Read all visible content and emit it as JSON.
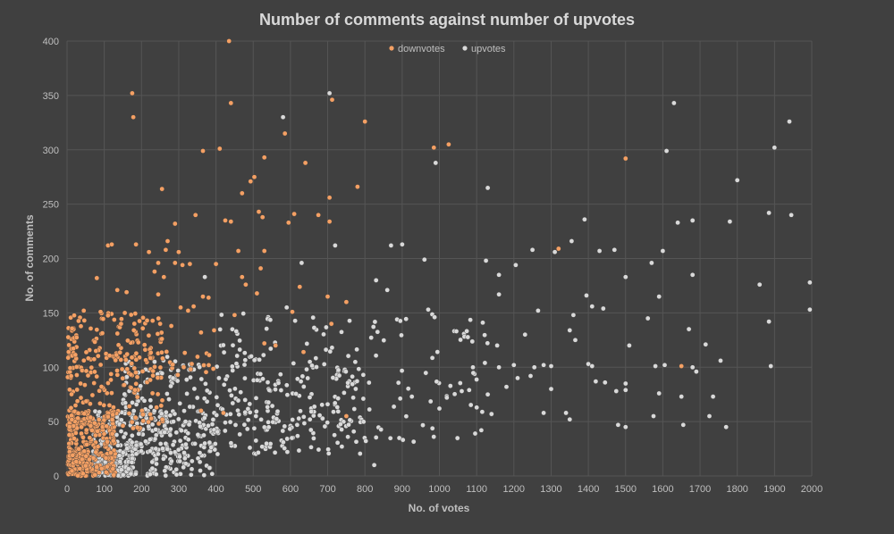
{
  "chart_data": {
    "type": "scatter",
    "title": "Number of comments against number of upvotes",
    "xlabel": "No. of votes",
    "ylabel": "No. of comments",
    "xlim": [
      0,
      2000
    ],
    "ylim": [
      0,
      400
    ],
    "xticks": [
      0,
      100,
      200,
      300,
      400,
      500,
      600,
      700,
      800,
      900,
      1000,
      1100,
      1200,
      1300,
      1400,
      1500,
      1600,
      1700,
      1800,
      1900,
      2000
    ],
    "yticks": [
      0,
      50,
      100,
      150,
      200,
      250,
      300,
      350,
      400
    ],
    "grid": true,
    "legend_position": "top-center",
    "series": [
      {
        "name": "downvotes",
        "color": "#f4a064",
        "points": [
          [
            435,
            400
          ],
          [
            175,
            352
          ],
          [
            440,
            343
          ],
          [
            712,
            346
          ],
          [
            178,
            330
          ],
          [
            800,
            326
          ],
          [
            585,
            315
          ],
          [
            410,
            301
          ],
          [
            365,
            299
          ],
          [
            985,
            302
          ],
          [
            1025,
            305
          ],
          [
            1500,
            292
          ],
          [
            530,
            293
          ],
          [
            640,
            288
          ],
          [
            493,
            271
          ],
          [
            503,
            275
          ],
          [
            780,
            266
          ],
          [
            255,
            264
          ],
          [
            470,
            260
          ],
          [
            705,
            256
          ],
          [
            345,
            240
          ],
          [
            425,
            235
          ],
          [
            440,
            234
          ],
          [
            515,
            243
          ],
          [
            525,
            238
          ],
          [
            595,
            233
          ],
          [
            610,
            241
          ],
          [
            675,
            240
          ],
          [
            705,
            234
          ],
          [
            290,
            232
          ],
          [
            185,
            213
          ],
          [
            110,
            212
          ],
          [
            120,
            213
          ],
          [
            270,
            216
          ],
          [
            265,
            208
          ],
          [
            300,
            206
          ],
          [
            460,
            207
          ],
          [
            530,
            207
          ],
          [
            1320,
            209
          ],
          [
            220,
            206
          ],
          [
            80,
            182
          ],
          [
            245,
            196
          ],
          [
            400,
            195
          ],
          [
            290,
            196
          ],
          [
            235,
            188
          ],
          [
            260,
            183
          ],
          [
            310,
            194
          ],
          [
            330,
            195
          ],
          [
            520,
            191
          ],
          [
            245,
            167
          ],
          [
            470,
            183
          ],
          [
            480,
            176
          ],
          [
            510,
            168
          ],
          [
            625,
            174
          ],
          [
            700,
            165
          ],
          [
            750,
            160
          ],
          [
            135,
            171
          ],
          [
            160,
            169
          ],
          [
            365,
            165
          ],
          [
            380,
            164
          ],
          [
            305,
            155
          ],
          [
            325,
            152
          ],
          [
            340,
            156
          ],
          [
            450,
            148
          ],
          [
            605,
            151
          ],
          [
            710,
            140
          ],
          [
            45,
            152
          ],
          [
            90,
            151
          ],
          [
            145,
            140
          ],
          [
            215,
            143
          ],
          [
            250,
            140
          ],
          [
            280,
            138
          ],
          [
            360,
            132
          ],
          [
            395,
            134
          ],
          [
            530,
            122
          ],
          [
            560,
            120
          ],
          [
            1650,
            101
          ],
          [
            750,
            55
          ],
          [
            360,
            60
          ],
          [
            420,
            58
          ],
          [
            635,
            114
          ]
        ],
        "dense_clusters": [
          {
            "x": [
              2,
              260
            ],
            "y": [
              40,
              150
            ],
            "n": 220
          },
          {
            "x": [
              5,
              130
            ],
            "y": [
              0,
              60
            ],
            "n": 230
          },
          {
            "x": [
              2,
              55
            ],
            "y": [
              0,
              25
            ],
            "n": 100
          },
          {
            "x": [
              130,
              400
            ],
            "y": [
              90,
              115
            ],
            "n": 50
          }
        ]
      },
      {
        "name": "upvotes",
        "color": "#d9d9d9",
        "points": [
          [
            705,
            352
          ],
          [
            1630,
            343
          ],
          [
            1940,
            326
          ],
          [
            580,
            330
          ],
          [
            1900,
            302
          ],
          [
            1610,
            299
          ],
          [
            990,
            288
          ],
          [
            1800,
            272
          ],
          [
            1130,
            265
          ],
          [
            1390,
            236
          ],
          [
            1640,
            233
          ],
          [
            1680,
            235
          ],
          [
            1780,
            234
          ],
          [
            1885,
            242
          ],
          [
            1945,
            240
          ],
          [
            720,
            212
          ],
          [
            870,
            212
          ],
          [
            900,
            213
          ],
          [
            1250,
            208
          ],
          [
            1355,
            216
          ],
          [
            1430,
            207
          ],
          [
            1470,
            208
          ],
          [
            1310,
            206
          ],
          [
            1600,
            207
          ],
          [
            370,
            183
          ],
          [
            960,
            199
          ],
          [
            1125,
            198
          ],
          [
            1570,
            196
          ],
          [
            1205,
            194
          ],
          [
            1160,
            185
          ],
          [
            1500,
            183
          ],
          [
            1680,
            185
          ],
          [
            1995,
            178
          ],
          [
            630,
            196
          ],
          [
            830,
            180
          ],
          [
            1860,
            176
          ],
          [
            860,
            171
          ],
          [
            1160,
            167
          ],
          [
            1395,
            166
          ],
          [
            1590,
            165
          ],
          [
            1995,
            153
          ],
          [
            590,
            155
          ],
          [
            970,
            153
          ],
          [
            1265,
            152
          ],
          [
            1360,
            148
          ],
          [
            1410,
            156
          ],
          [
            1440,
            154
          ],
          [
            1560,
            145
          ],
          [
            1885,
            142
          ],
          [
            1670,
            135
          ],
          [
            1715,
            121
          ],
          [
            1510,
            120
          ],
          [
            1755,
            106
          ],
          [
            1890,
            101
          ],
          [
            1230,
            130
          ],
          [
            1350,
            134
          ],
          [
            1365,
            125
          ],
          [
            1580,
            101
          ],
          [
            1605,
            102
          ],
          [
            1680,
            100
          ],
          [
            1690,
            96
          ],
          [
            1400,
            103
          ],
          [
            1410,
            101
          ],
          [
            1280,
            102
          ],
          [
            1300,
            101
          ],
          [
            1255,
            100
          ],
          [
            1210,
            90
          ],
          [
            1245,
            92
          ],
          [
            1420,
            87
          ],
          [
            1445,
            86
          ],
          [
            1475,
            78
          ],
          [
            1500,
            79
          ],
          [
            1590,
            76
          ],
          [
            1300,
            80
          ],
          [
            1280,
            58
          ],
          [
            1340,
            58
          ],
          [
            1350,
            52
          ],
          [
            1480,
            47
          ],
          [
            1500,
            45
          ],
          [
            1575,
            55
          ],
          [
            1655,
            47
          ],
          [
            1725,
            55
          ],
          [
            1735,
            73
          ],
          [
            1650,
            73
          ],
          [
            1770,
            45
          ],
          [
            1500,
            85
          ],
          [
            1155,
            120
          ],
          [
            1130,
            75
          ],
          [
            1140,
            57
          ],
          [
            1000,
            62
          ],
          [
            1020,
            72
          ],
          [
            1060,
            78
          ],
          [
            1080,
            79
          ],
          [
            1100,
            63
          ],
          [
            1115,
            59
          ],
          [
            1090,
            100
          ],
          [
            825,
            10
          ],
          [
            1200,
            102
          ],
          [
            1160,
            100
          ],
          [
            1180,
            82
          ]
        ],
        "dense_clusters": [
          {
            "x": [
              70,
              400
            ],
            "y": [
              0,
              60
            ],
            "n": 300
          },
          {
            "x": [
              70,
              180
            ],
            "y": [
              0,
              20
            ],
            "n": 180
          },
          {
            "x": [
              150,
              800
            ],
            "y": [
              20,
              110
            ],
            "n": 290
          },
          {
            "x": [
              400,
              1150
            ],
            "y": [
              30,
              150
            ],
            "n": 160
          }
        ]
      }
    ]
  }
}
